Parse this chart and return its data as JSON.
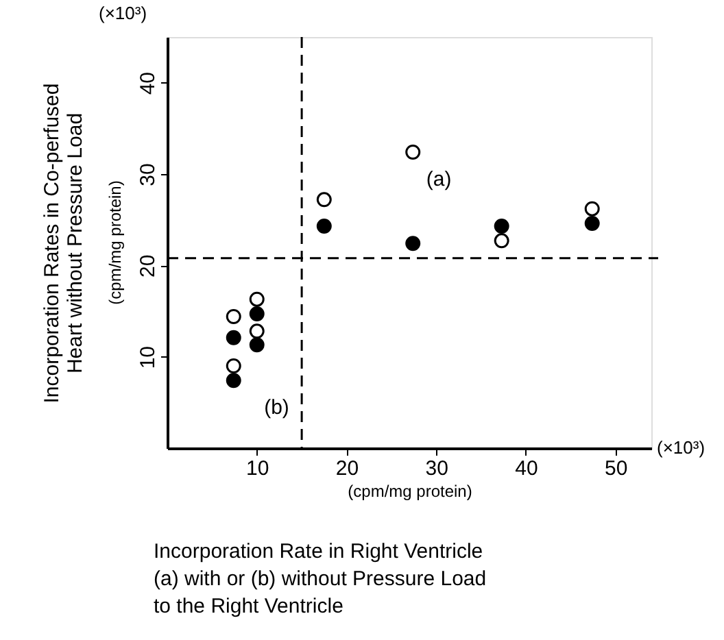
{
  "chart_data": {
    "type": "scatter",
    "xlabel": "(cpm/mg protein)",
    "ylabel": "Incorporation Rates in Co-perfused\nHeart without Pressure Load",
    "y2label": "(cpm/mg protein)",
    "xlim": [
      0,
      54
    ],
    "ylim": [
      0,
      45
    ],
    "xticks": [
      10,
      20,
      30,
      40,
      50
    ],
    "yticks": [
      10,
      20,
      30,
      40
    ],
    "grid": false,
    "legend": false,
    "marker": "circle",
    "series": [
      {
        "color": "#ffffff",
        "x": [
          7.4,
          7.4,
          10,
          10,
          17.5,
          27.4,
          37.3,
          47.4
        ],
        "values": [
          14.4,
          9.0,
          16.3,
          12.8,
          27.2,
          32.4,
          22.7,
          26.2
        ]
      },
      {
        "color": "#000000",
        "x": [
          7.4,
          7.4,
          10,
          10,
          17.5,
          27.4,
          37.3,
          47.4
        ],
        "values": [
          12.1,
          7.4,
          14.7,
          11.3,
          24.3,
          22.4,
          24.3,
          24.6
        ]
      }
    ],
    "ref_lines": [
      {
        "axis": "x",
        "value": 15,
        "line_style": "dashed",
        "color": "#000000"
      },
      {
        "axis": "y",
        "value": 20.8,
        "line_style": "dashed",
        "color": "#000000"
      }
    ],
    "annotations": [
      "(a)",
      "(b)",
      "(×10³)",
      "(×10³)",
      "Incorporation Rate in Right Ventricle\n(a) with or   (b) without Pressure Load\nto the Right Ventricle"
    ]
  }
}
